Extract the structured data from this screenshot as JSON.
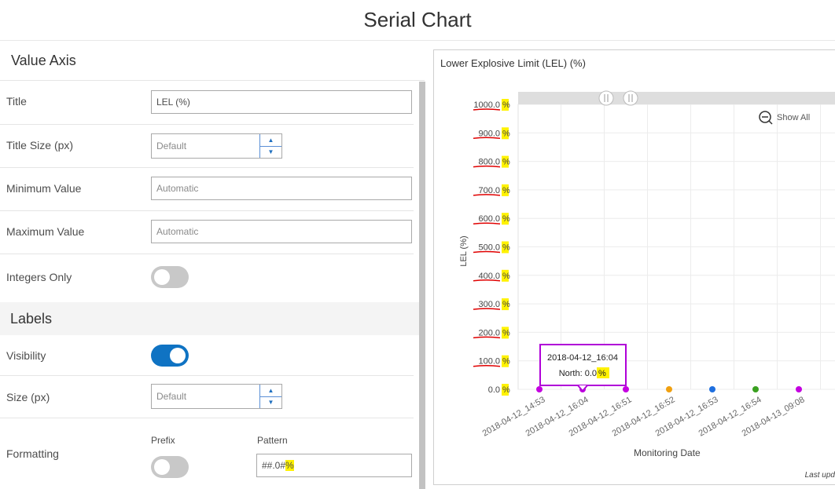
{
  "page": {
    "title": "Serial Chart"
  },
  "value_axis": {
    "heading": "Value Axis",
    "title_label": "Title",
    "title_value": "LEL (%)",
    "title_size_label": "Title Size (px)",
    "title_size_value": "Default",
    "min_label": "Minimum Value",
    "min_placeholder": "Automatic",
    "max_label": "Maximum Value",
    "max_placeholder": "Automatic",
    "integers_label": "Integers Only",
    "integers_on": false
  },
  "labels": {
    "heading": "Labels",
    "visibility_label": "Visibility",
    "visibility_on": true,
    "size_label": "Size (px)",
    "size_value": "Default",
    "formatting_label": "Formatting",
    "prefix_label": "Prefix",
    "prefix_on": false,
    "pattern_label": "Pattern",
    "pattern_value_main": "##.0#",
    "pattern_value_suffix": "%"
  },
  "colors": {
    "accent": "#0f73c3",
    "highlight": "#fff200",
    "tooltip_border": "#b000d8",
    "underline": "#e00000"
  },
  "chart": {
    "show_all_label": "Show All",
    "tooltip_date": "2018-04-12_16:04",
    "tooltip_value_main": "North: 0.0",
    "tooltip_value_suffix": "%",
    "last_updated": "Last upd"
  },
  "chart_data": {
    "type": "line",
    "title": "Lower Explosive Limit (LEL) (%)",
    "ylabel": "LEL (%)",
    "xlabel": "Monitoring Date",
    "ylim": [
      0,
      1000
    ],
    "y_ticks": [
      "1000.0 %",
      "900.0 %",
      "800.0 %",
      "700.0 %",
      "600.0 %",
      "500.0 %",
      "400.0 %",
      "300.0 %",
      "200.0 %",
      "100.0 %",
      "0.0 %"
    ],
    "y_tick_values": [
      1000,
      900,
      800,
      700,
      600,
      500,
      400,
      300,
      200,
      100,
      0
    ],
    "categories": [
      "2018-04-12_14:53",
      "2018-04-12_16:04",
      "2018-04-12_16:51",
      "2018-04-12_16:52",
      "2018-04-12_16:53",
      "2018-04-12_16:54",
      "2018-04-13_09:08"
    ],
    "values": [
      0,
      0,
      0,
      0,
      0,
      0,
      0
    ],
    "point_colors": [
      "#c400e0",
      "#c400e0",
      "#c400e0",
      "#f0a010",
      "#1f6fdf",
      "#3aa020",
      "#c400e0"
    ],
    "grid": true
  }
}
